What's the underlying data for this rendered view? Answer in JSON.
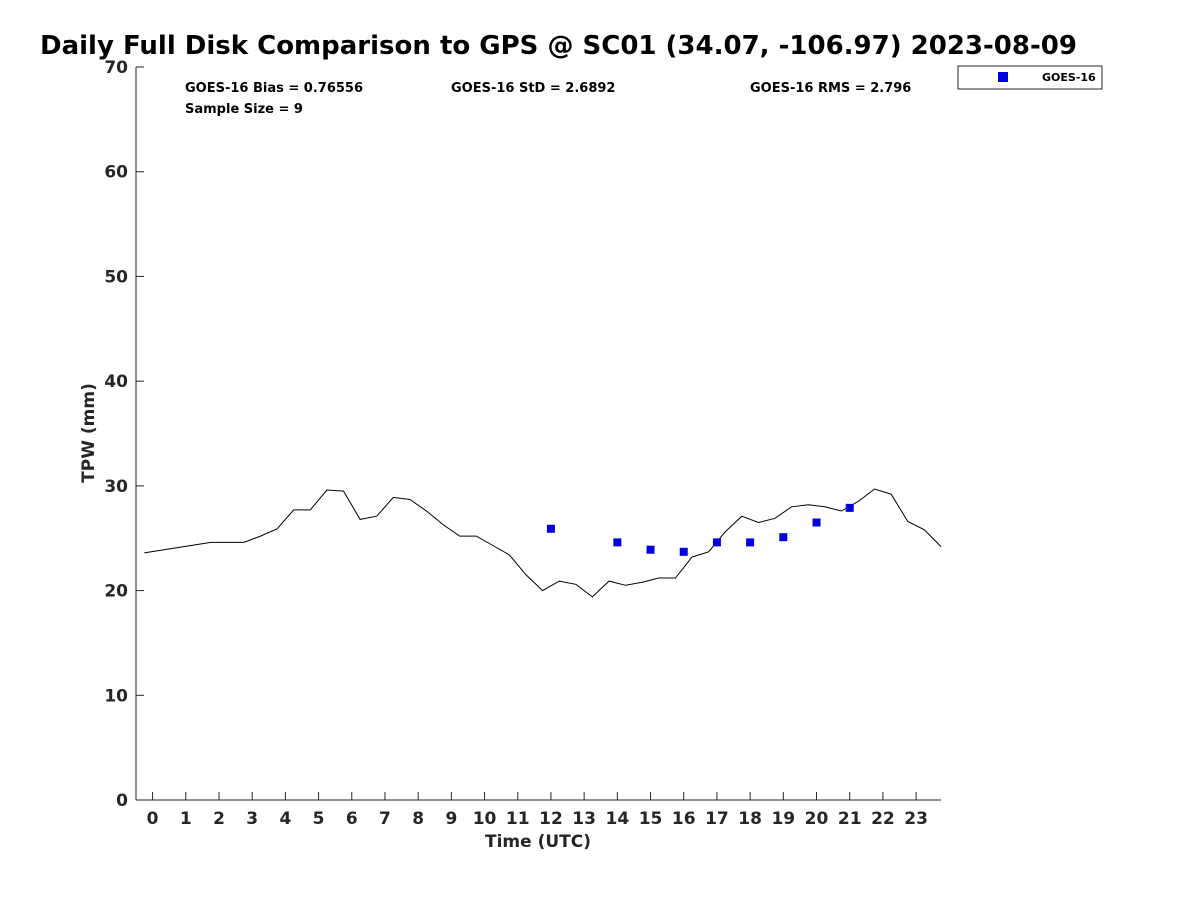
{
  "title": "Daily Full Disk Comparison to GPS @ SC01 (34.07, -106.97) 2023-08-09",
  "stats": {
    "bias": "GOES-16 Bias = 0.76556",
    "std": "GOES-16 StD = 2.6892",
    "rms": "GOES-16 RMS = 2.796",
    "sample": "Sample Size = 9"
  },
  "legend": {
    "label": "GOES-16",
    "marker_color": "#0000dd"
  },
  "chart_data": {
    "type": "scatter",
    "title": "Daily Full Disk Comparison to GPS @ SC01 (34.07, -106.97) 2023-08-09",
    "xlabel": "Time (UTC)",
    "ylabel": "TPW (mm)",
    "xlim": [
      -0.5,
      23.75
    ],
    "ylim": [
      0,
      70
    ],
    "x_ticks": [
      0,
      1,
      2,
      3,
      4,
      5,
      6,
      7,
      8,
      9,
      10,
      11,
      12,
      13,
      14,
      15,
      16,
      17,
      18,
      19,
      20,
      21,
      22,
      23
    ],
    "y_ticks": [
      0,
      10,
      20,
      30,
      40,
      50,
      60,
      70
    ],
    "grid": false,
    "legend_position": "outside top-right",
    "series": [
      {
        "type": "line",
        "color": "#000000",
        "x": [
          -0.25,
          0.75,
          1.75,
          2.25,
          2.75,
          3.25,
          3.75,
          4.25,
          4.75,
          5.25,
          5.75,
          6.25,
          6.75,
          7.25,
          7.75,
          8.25,
          8.75,
          9.25,
          9.75,
          10.25,
          10.75,
          11.25,
          11.75,
          12.25,
          12.75,
          13.25,
          13.75,
          14.25,
          14.75,
          15.25,
          15.75,
          16.25,
          16.75,
          17.25,
          17.75,
          18.25,
          18.75,
          19.25,
          19.75,
          20.25,
          20.75,
          21.25,
          21.75,
          22.25,
          22.75,
          23.25,
          23.75
        ],
        "values": [
          23.6,
          24.1,
          24.6,
          24.6,
          24.6,
          25.2,
          25.9,
          27.7,
          27.7,
          29.6,
          29.5,
          26.8,
          27.1,
          28.9,
          28.7,
          27.6,
          26.3,
          25.2,
          25.2,
          24.3,
          23.4,
          21.5,
          20.0,
          20.9,
          20.6,
          19.4,
          20.9,
          20.5,
          20.8,
          21.2,
          21.2,
          23.2,
          23.7,
          25.6,
          27.1,
          26.5,
          26.9,
          28.0,
          28.2,
          28.0,
          27.6,
          28.5,
          29.7,
          29.2,
          26.6,
          25.8,
          24.2
        ]
      },
      {
        "name": "GOES-16",
        "type": "scatter",
        "color": "#0000dd",
        "x": [
          12,
          14,
          15,
          16,
          17,
          18,
          19,
          20,
          21
        ],
        "values": [
          25.9,
          24.6,
          23.9,
          23.7,
          24.6,
          24.6,
          25.1,
          26.5,
          27.9
        ]
      }
    ]
  }
}
